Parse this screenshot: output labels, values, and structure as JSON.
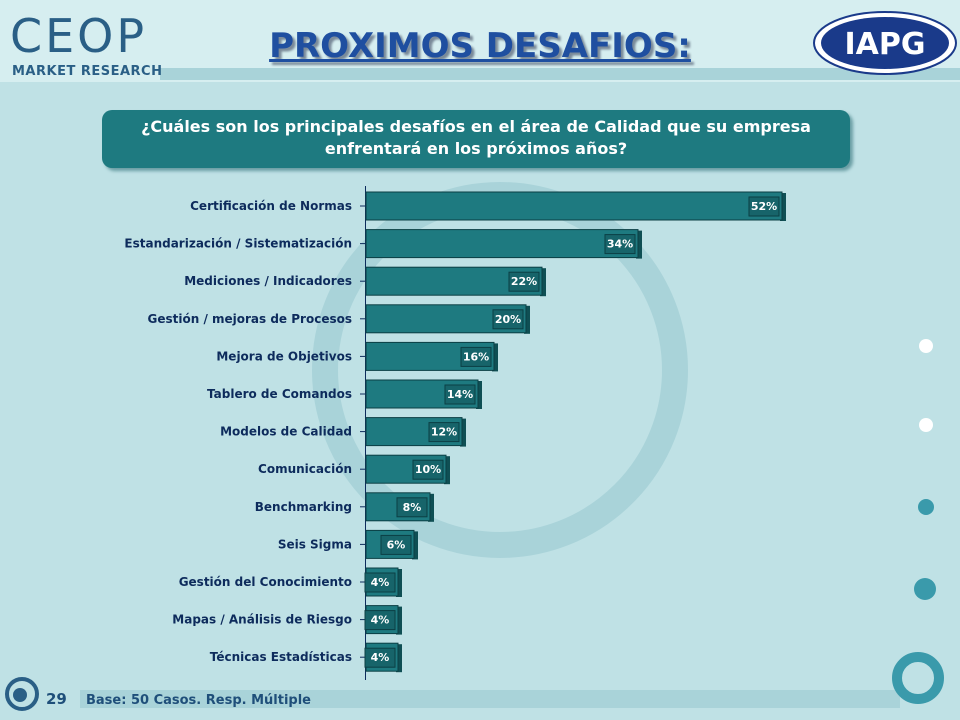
{
  "header": {
    "logo_left_main": "CEOP",
    "logo_left_sub": "MARKET RESEARCH",
    "title": "PROXIMOS DESAFIOS:",
    "logo_right": "IAPG"
  },
  "question": {
    "line1": "¿Cuáles son los principales desafíos en el área de Calidad que su empresa",
    "line2": "enfrentará en los próximos años?"
  },
  "footer": {
    "page_number": "29",
    "base_note": "Base: 50 Casos. Resp. Múltiple"
  },
  "colors": {
    "background": "#bfe1e5",
    "bar": "#1e7a80",
    "bar_dark": "#0f4f54",
    "title": "#1f4fa0",
    "label": "#0d2b5c"
  },
  "chart_data": {
    "type": "bar",
    "orientation": "horizontal",
    "categories": [
      "Certificación de Normas",
      "Estandarización / Sistematización",
      "Mediciones / Indicadores",
      "Gestión / mejoras de Procesos",
      "Mejora de Objetivos",
      "Tablero de Comandos",
      "Modelos de Calidad",
      "Comunicación",
      "Benchmarking",
      "Seis Sigma",
      "Gestión del Conocimiento",
      "Mapas / Análisis de Riesgo",
      "Técnicas Estadísticas"
    ],
    "values": [
      52,
      34,
      22,
      20,
      16,
      14,
      12,
      10,
      8,
      6,
      4,
      4,
      4
    ],
    "value_labels": [
      "52%",
      "34%",
      "22%",
      "20%",
      "16%",
      "14%",
      "12%",
      "10%",
      "8%",
      "6%",
      "4%",
      "4%",
      "4%"
    ],
    "title": "",
    "xlabel": "",
    "ylabel": "",
    "xlim": [
      0,
      52
    ],
    "grid": false,
    "legend": "none"
  }
}
